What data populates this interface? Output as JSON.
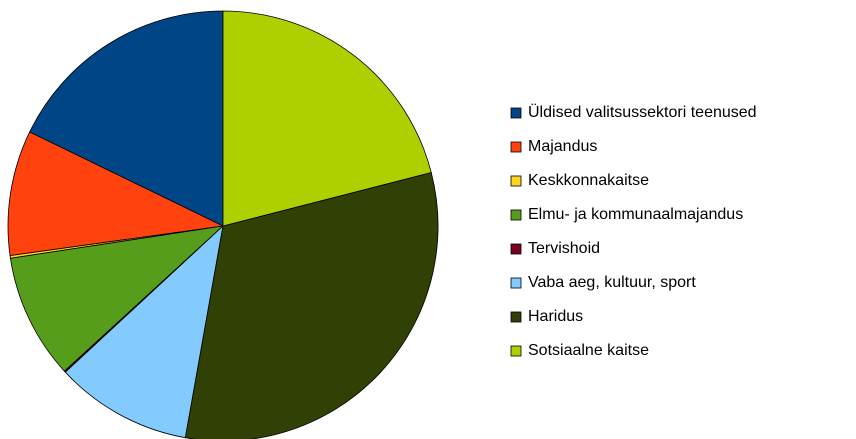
{
  "chart_data": {
    "type": "pie",
    "categories": [
      "Üldised valitsussektori teenused",
      "Majandus",
      "Keskkonnakaitse",
      "Elmu- ja kommunaalmajandus",
      "Tervishoid",
      "Vaba aeg, kultuur, sport",
      "Haridus",
      "Sotsiaalne kaitse"
    ],
    "values": [
      17.8,
      9.4,
      0.2,
      9.4,
      0.1,
      10.3,
      31.8,
      21.0
    ],
    "colors": [
      "#004586",
      "#ff420e",
      "#ffd320",
      "#579d1c",
      "#7e0021",
      "#83caff",
      "#314004",
      "#aecf00"
    ],
    "legend": "right"
  }
}
